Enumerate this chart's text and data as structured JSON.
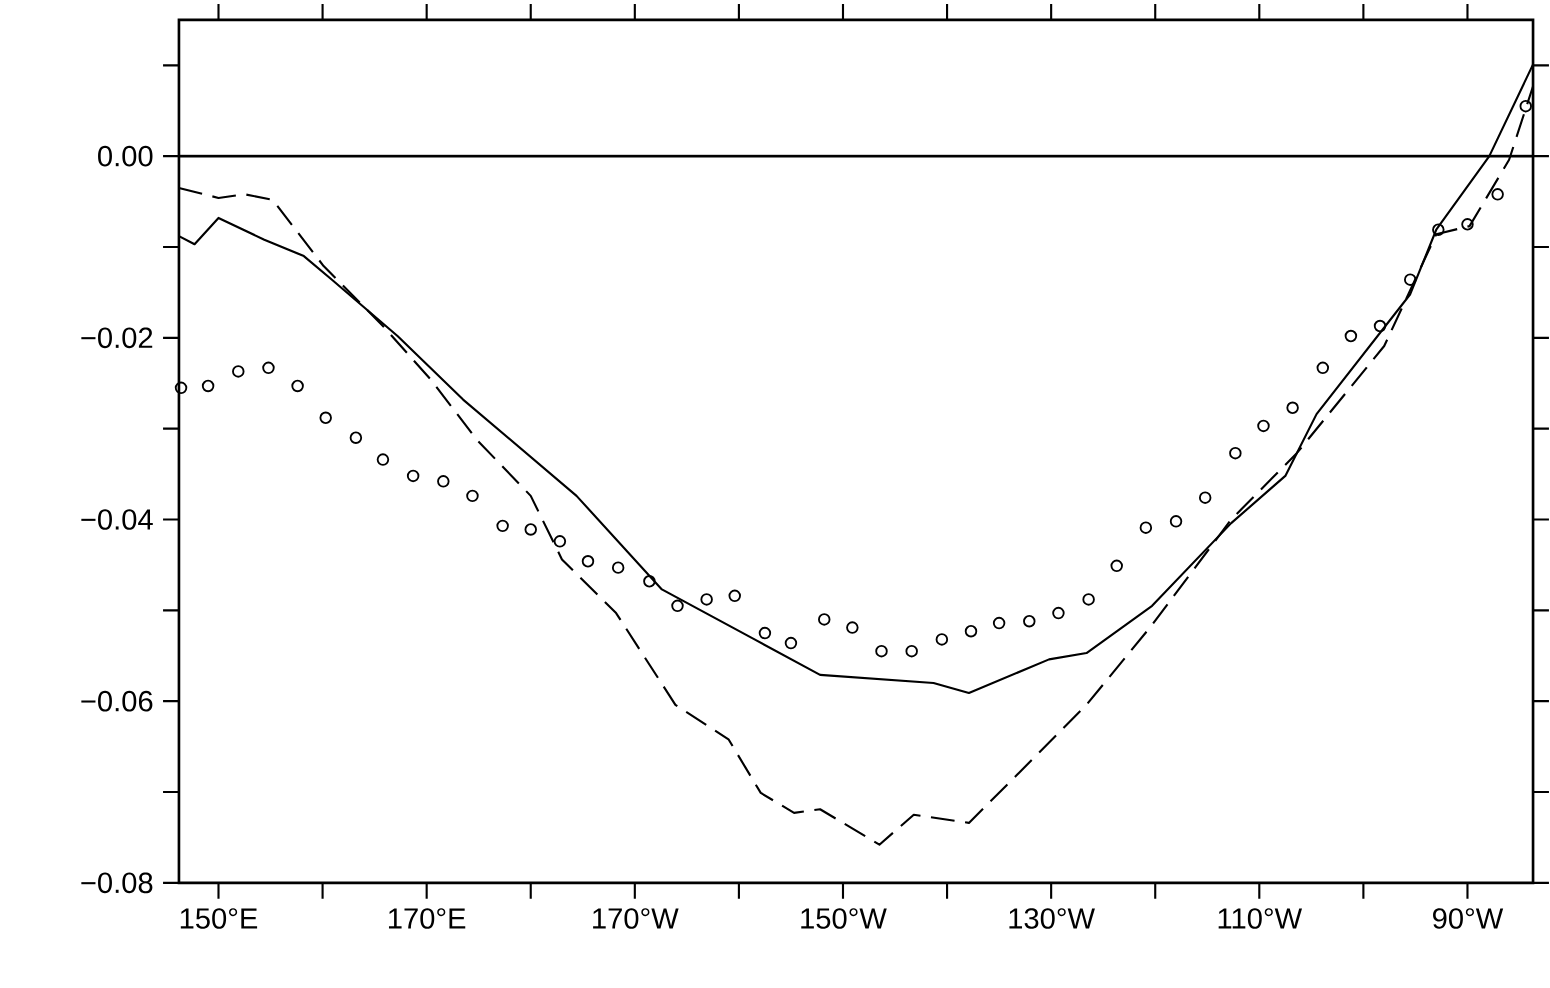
{
  "chart_data": {
    "type": "line",
    "xlim": [
      146.2,
      276.3
    ],
    "ylim": [
      -0.08,
      0.015
    ],
    "xticks": [
      {
        "value": 150,
        "label": "150°E"
      },
      {
        "value": 160,
        "label": null
      },
      {
        "value": 170,
        "label": "170°E"
      },
      {
        "value": 180,
        "label": null
      },
      {
        "value": 190,
        "label": "170°W"
      },
      {
        "value": 200,
        "label": null
      },
      {
        "value": 210,
        "label": "150°W"
      },
      {
        "value": 220,
        "label": null
      },
      {
        "value": 230,
        "label": "130°W"
      },
      {
        "value": 240,
        "label": null
      },
      {
        "value": 250,
        "label": "110°W"
      },
      {
        "value": 260,
        "label": null
      },
      {
        "value": 270,
        "label": "90°W"
      }
    ],
    "yticks": [
      {
        "value": -0.08,
        "label": "−0.08"
      },
      {
        "value": -0.07,
        "label": null
      },
      {
        "value": -0.06,
        "label": "−0.06"
      },
      {
        "value": -0.05,
        "label": null
      },
      {
        "value": -0.04,
        "label": "−0.04"
      },
      {
        "value": -0.03,
        "label": null
      },
      {
        "value": -0.02,
        "label": "−0.02"
      },
      {
        "value": -0.01,
        "label": null
      },
      {
        "value": 0,
        "label": "0.00"
      },
      {
        "value": 0.01,
        "label": null
      }
    ],
    "ref_lines": [
      {
        "axis": "y",
        "value": 0,
        "color": "#000000"
      }
    ],
    "series": [
      {
        "line_style": "solid",
        "marker": "none",
        "color": "#000000",
        "x": [
          146.2,
          147.7,
          150,
          154.4,
          158.2,
          160.9,
          167.2,
          173.5,
          184.4,
          192.6,
          201.5,
          207.8,
          218.7,
          222.1,
          229.8,
          233.4,
          239.7,
          247.3,
          252.5,
          255.5,
          264.5,
          267,
          272.1,
          276.3
        ],
        "values": [
          -0.0088,
          -0.0097,
          -0.0068,
          -0.0092,
          -0.011,
          -0.0136,
          -0.0198,
          -0.0268,
          -0.0374,
          -0.0477,
          -0.0532,
          -0.0571,
          -0.058,
          -0.0591,
          -0.0554,
          -0.0547,
          -0.0495,
          -0.0404,
          -0.0352,
          -0.0284,
          -0.0152,
          -0.0081,
          0,
          0.0101
        ]
      },
      {
        "line_style": "dashed",
        "marker": "none",
        "color": "#000000",
        "x": [
          146.2,
          150,
          152.5,
          155.2,
          160.1,
          165.8,
          170.4,
          174.8,
          180,
          183,
          188.2,
          193.9,
          199,
          202.1,
          205.3,
          207.8,
          213.5,
          216.8,
          222.1,
          226.9,
          233.4,
          239.7,
          247.3,
          253.6,
          262,
          267,
          270.2,
          274,
          276.3
        ],
        "values": [
          -0.0035,
          -0.0046,
          -0.0042,
          -0.0048,
          -0.0121,
          -0.0187,
          -0.0246,
          -0.0312,
          -0.0374,
          -0.0444,
          -0.0503,
          -0.0604,
          -0.0642,
          -0.0701,
          -0.0723,
          -0.0719,
          -0.0758,
          -0.0725,
          -0.0734,
          -0.0679,
          -0.0604,
          -0.0516,
          -0.04,
          -0.0327,
          -0.0209,
          -0.0086,
          -0.0077,
          -0.0004,
          0.0077
        ]
      },
      {
        "type": "scatter",
        "marker": "circle",
        "color": "#000000",
        "x": [
          146.4,
          149,
          151.9,
          154.8,
          157.6,
          160.3,
          163.2,
          165.8,
          168.7,
          171.6,
          174.4,
          177.3,
          180,
          182.8,
          185.5,
          188.4,
          191.4,
          194.1,
          196.9,
          199.6,
          202.5,
          205,
          208.2,
          210.9,
          213.7,
          216.6,
          219.5,
          222.3,
          225,
          227.9,
          230.7,
          233.6,
          236.3,
          239.1,
          242,
          244.8,
          247.7,
          250.4,
          253.2,
          256.1,
          258.8,
          261.6,
          264.5,
          267.2,
          270,
          272.9,
          275.6
        ],
        "values": [
          -0.0255,
          -0.0253,
          -0.0237,
          -0.0233,
          -0.0253,
          -0.0288,
          -0.031,
          -0.0334,
          -0.0352,
          -0.0358,
          -0.0374,
          -0.0407,
          -0.0411,
          -0.0424,
          -0.0446,
          -0.0453,
          -0.0468,
          -0.0495,
          -0.0488,
          -0.0484,
          -0.0525,
          -0.0536,
          -0.051,
          -0.0519,
          -0.0545,
          -0.0545,
          -0.0532,
          -0.0523,
          -0.0514,
          -0.0512,
          -0.0503,
          -0.0488,
          -0.0451,
          -0.0409,
          -0.0402,
          -0.0376,
          -0.0327,
          -0.0297,
          -0.0277,
          -0.0233,
          -0.0198,
          -0.0187,
          -0.0136,
          -0.0081,
          -0.0075,
          -0.0042,
          0.0055
        ]
      }
    ]
  }
}
